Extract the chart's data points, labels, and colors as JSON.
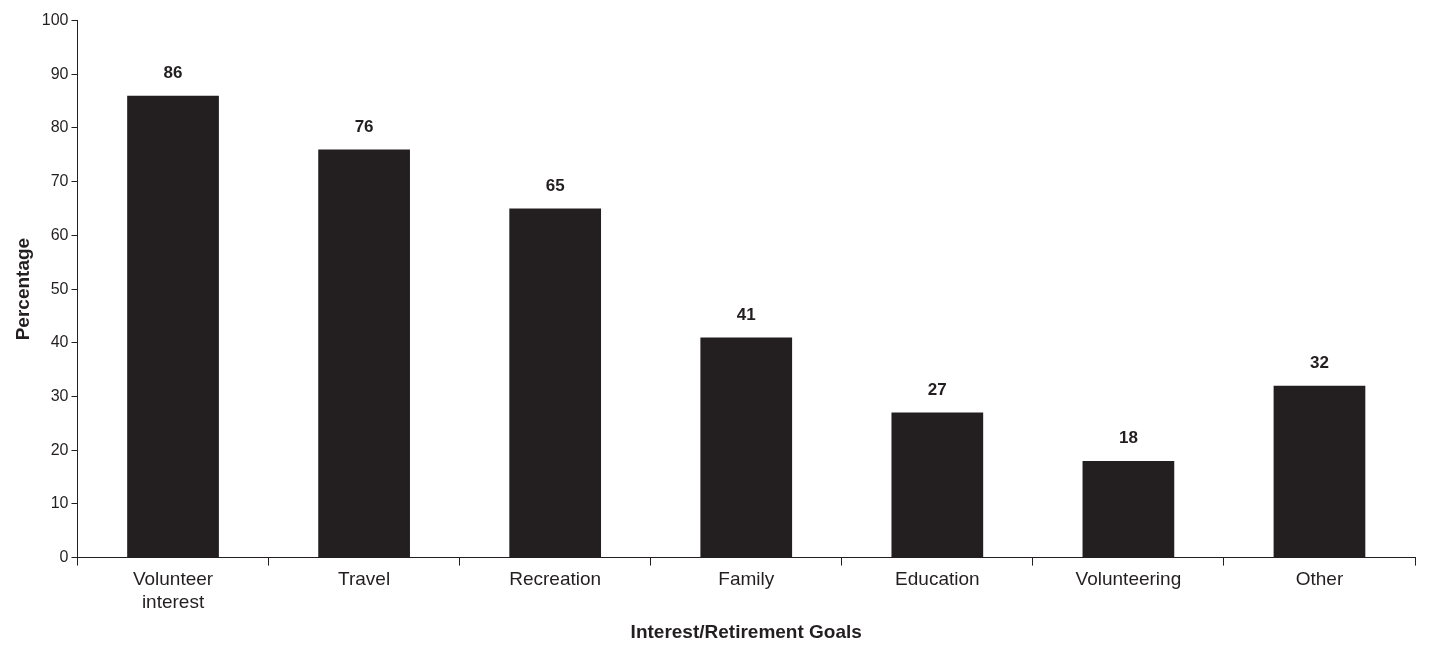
{
  "chart_data": {
    "type": "bar",
    "xlabel": "Interest/Retirement Goals",
    "ylabel": "Percentage",
    "categories": [
      "Volunteer interest",
      "Travel",
      "Recreation",
      "Family",
      "Education",
      "Volunteering",
      "Other"
    ],
    "values": [
      86,
      76,
      65,
      41,
      27,
      18,
      32
    ],
    "color": "#231f20",
    "ylim": [
      0,
      100
    ],
    "yticks": [
      0,
      10,
      20,
      30,
      40,
      50,
      60,
      70,
      80,
      90,
      100
    ],
    "grid": false,
    "legend": false,
    "data_labels": true
  }
}
